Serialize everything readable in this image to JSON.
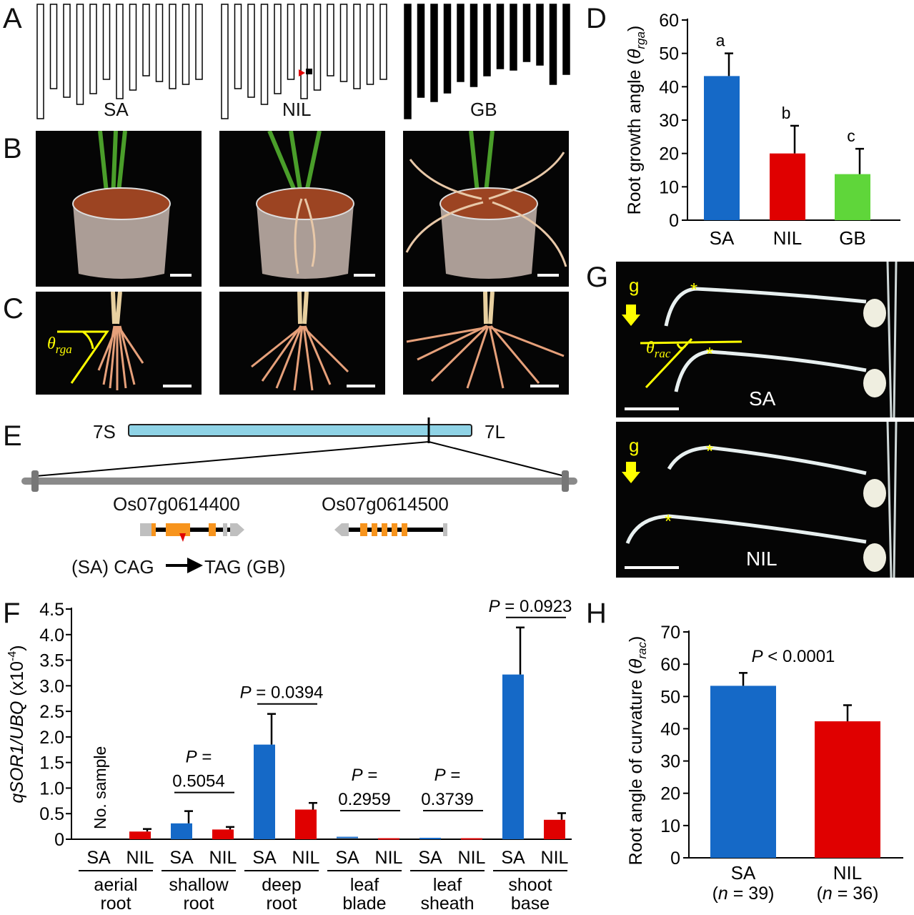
{
  "panels": {
    "A": "A",
    "B": "B",
    "C": "C",
    "D": "D",
    "E": "E",
    "F": "F",
    "G": "G",
    "H": "H"
  },
  "panel_a": {
    "genotypes": [
      "SA",
      "NIL",
      "GB"
    ]
  },
  "panel_c": {
    "angle_symbol": "θ",
    "angle_subscript": "rga"
  },
  "panel_e": {
    "chrom_left": "7S",
    "chrom_right": "7L",
    "gene1": "Os07g0614400",
    "gene2": "Os07g0614500",
    "mutation_left": "(SA) CAG",
    "mutation_right": "TAG (GB)"
  },
  "panel_g": {
    "gravity_label": "g",
    "angle_symbol": "θ",
    "angle_subscript": "rac",
    "top_label": "SA",
    "bottom_label": "NIL"
  },
  "colors": {
    "SA": "#1569c7",
    "NIL": "#e00000",
    "GB": "#5fd63a",
    "annotation": "#ffff00",
    "chromosome": "#8fd3e6",
    "exon": "#f7941d"
  },
  "chart_data": [
    {
      "panel": "D",
      "type": "bar",
      "categories": [
        "SA",
        "NIL",
        "GB"
      ],
      "values": [
        43.2,
        20.0,
        13.8
      ],
      "errors": [
        6.8,
        8.3,
        7.6
      ],
      "letters": [
        "a",
        "b",
        "c"
      ],
      "ylabel_main": "Root growth angle (",
      "ylabel_symbol": "θ",
      "ylabel_sub": "rga",
      "ylabel_end": ")",
      "ylim": [
        0,
        60
      ],
      "yticks": [
        0,
        10,
        20,
        30,
        40,
        50,
        60
      ]
    },
    {
      "panel": "F",
      "type": "bar",
      "ylabel_italic": "qSOR1/UBQ",
      "ylabel_rest": " (x10",
      "ylabel_sup": "-4",
      "ylabel_end": ")",
      "ylim": [
        0,
        4.5
      ],
      "yticks": [
        "0",
        "0.5",
        "1.0",
        "1.5",
        "2.0",
        "2.5",
        "3.0",
        "3.5",
        "4.0",
        "4.5"
      ],
      "series_labels": [
        "SA",
        "NIL"
      ],
      "groups": [
        {
          "tissue": [
            "aerial",
            "root"
          ],
          "SA": null,
          "SA_err": null,
          "NIL": 0.15,
          "NIL_err": 0.05,
          "note": "No. sample",
          "p_italic": "",
          "p_value": ""
        },
        {
          "tissue": [
            "shallow",
            "root"
          ],
          "SA": 0.31,
          "SA_err": 0.24,
          "NIL": 0.19,
          "NIL_err": 0.05,
          "note": "",
          "p_italic": "P",
          "p_value": " =",
          "p_value2": "0.5054"
        },
        {
          "tissue": [
            "deep",
            "root"
          ],
          "SA": 1.85,
          "SA_err": 0.6,
          "NIL": 0.58,
          "NIL_err": 0.13,
          "note": "",
          "p_italic": "P",
          "p_value": " = 0.0394"
        },
        {
          "tissue": [
            "leaf",
            "blade"
          ],
          "SA": 0.02,
          "SA_err": 0,
          "NIL": 0.02,
          "NIL_err": 0,
          "note": "",
          "p_italic": "P",
          "p_value": " =",
          "p_value2": "0.2959"
        },
        {
          "tissue": [
            "leaf",
            "sheath"
          ],
          "SA": 0.0,
          "SA_err": 0,
          "NIL": 0.02,
          "NIL_err": 0,
          "note": "",
          "p_italic": "P",
          "p_value": " =",
          "p_value2": "0.3739"
        },
        {
          "tissue": [
            "shoot",
            "base"
          ],
          "SA": 3.22,
          "SA_err": 0.92,
          "NIL": 0.38,
          "NIL_err": 0.13,
          "note": "",
          "p_italic": "P",
          "p_value": " = 0.0923"
        }
      ]
    },
    {
      "panel": "H",
      "type": "bar",
      "categories": [
        "SA",
        "NIL"
      ],
      "n_labels": [
        "(n = 39)",
        "(n = 36)"
      ],
      "n_prefix": "(",
      "n_italic": "n",
      "n_values": [
        " = 39)",
        " = 36)"
      ],
      "values": [
        53.3,
        42.3
      ],
      "errors": [
        4.0,
        5.0
      ],
      "p_italic": "P",
      "p_value": " < 0.0001",
      "ylabel_main": "Root angle of curvature (",
      "ylabel_symbol": "θ",
      "ylabel_sub": "rac",
      "ylabel_end": ")",
      "ylim": [
        0,
        70
      ],
      "yticks": [
        0,
        10,
        20,
        30,
        40,
        50,
        60,
        70
      ]
    }
  ]
}
